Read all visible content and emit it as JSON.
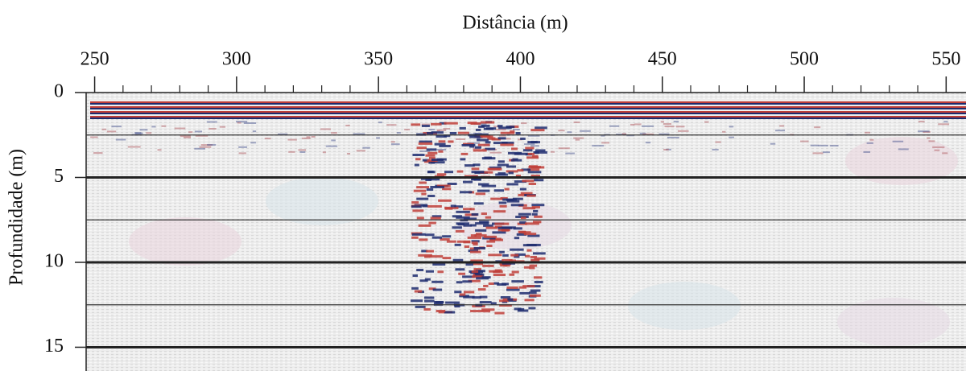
{
  "chart_data": {
    "type": "radargram",
    "x_label": "Distância (m)",
    "y_label": "Profundidade (m)",
    "xlim": [
      247,
      557
    ],
    "xticks": [
      250,
      300,
      350,
      400,
      450,
      500,
      550
    ],
    "xminor_ticks": [
      260,
      270,
      280,
      290,
      310,
      320,
      330,
      340,
      360,
      370,
      380,
      390,
      410,
      420,
      430,
      440,
      460,
      470,
      480,
      490,
      510,
      520,
      530,
      540
    ],
    "ylim": [
      0,
      16.4
    ],
    "yticks": [
      0,
      5,
      10,
      15
    ],
    "ygrid_minor": [
      2.5,
      7.5,
      12.5
    ],
    "grid": true,
    "y_inverted": true
  }
}
